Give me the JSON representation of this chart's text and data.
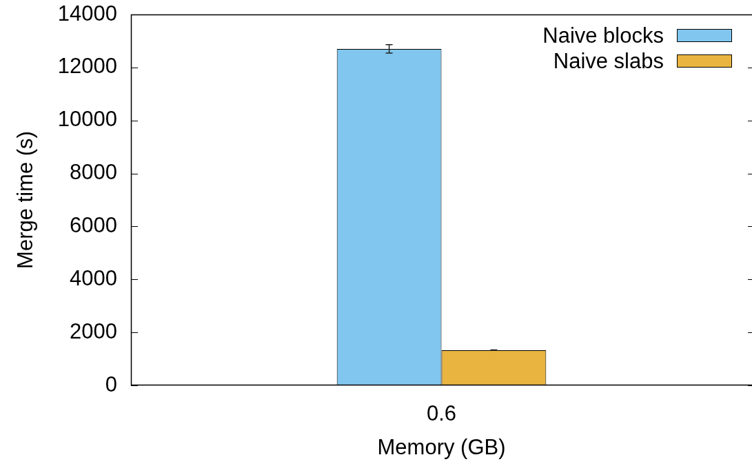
{
  "chart_data": {
    "type": "bar",
    "xlabel": "Memory (GB)",
    "ylabel": "Merge time (s)",
    "categories": [
      "0.6"
    ],
    "series": [
      {
        "name": "Naive blocks",
        "color": "#80c6ee",
        "values": [
          12700
        ],
        "errors": [
          160
        ]
      },
      {
        "name": "Naive slabs",
        "color": "#e9b540",
        "values": [
          1330
        ],
        "errors": [
          10
        ]
      }
    ],
    "ylim": [
      0,
      14000
    ],
    "yticks": [
      0,
      2000,
      4000,
      6000,
      8000,
      10000,
      12000,
      14000
    ],
    "legend": "top right"
  }
}
